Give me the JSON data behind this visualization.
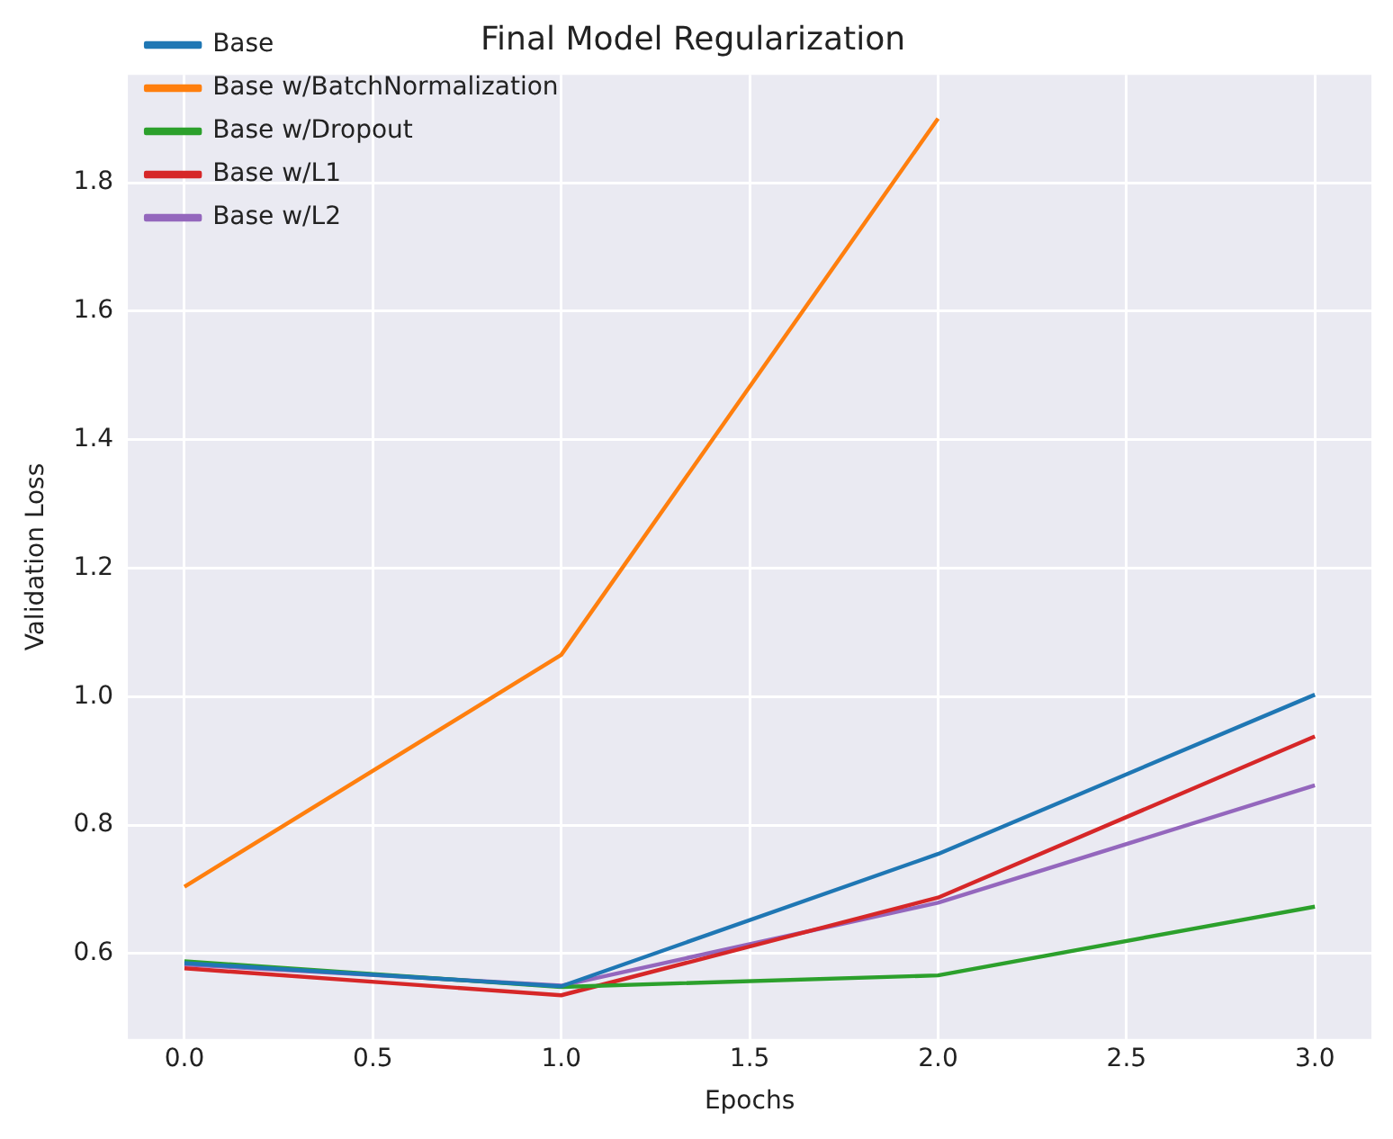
{
  "chart_data": {
    "type": "line",
    "title": "Final Model Regularization",
    "xlabel": "Epochs",
    "ylabel": "Validation Loss",
    "x": [
      0,
      1,
      2,
      3
    ],
    "series": [
      {
        "name": "Base",
        "color": "#1f77b4",
        "values": [
          0.585,
          0.549,
          0.755,
          1.003
        ]
      },
      {
        "name": "Base w/BatchNormalization",
        "color": "#ff7f0e",
        "values": [
          0.704,
          1.065,
          1.9,
          null
        ]
      },
      {
        "name": "Base w/Dropout",
        "color": "#2ca02c",
        "values": [
          0.588,
          0.548,
          0.566,
          0.673
        ]
      },
      {
        "name": "Base w/L1",
        "color": "#d62728",
        "values": [
          0.577,
          0.535,
          0.687,
          0.938
        ]
      },
      {
        "name": "Base w/L2",
        "color": "#9467bd",
        "values": [
          0.583,
          0.55,
          0.679,
          0.862
        ]
      }
    ],
    "xlim": [
      -0.15,
      3.15
    ],
    "xticks": [
      {
        "value": 0,
        "label": "0.0"
      },
      {
        "value": 0.5,
        "label": "0.5"
      },
      {
        "value": 1,
        "label": "1.0"
      },
      {
        "value": 1.5,
        "label": "1.5"
      },
      {
        "value": 2,
        "label": "2.0"
      },
      {
        "value": 2.5,
        "label": "2.5"
      },
      {
        "value": 3,
        "label": "3.0"
      }
    ],
    "ylim": [
      0.467,
      1.968
    ],
    "yticks": [
      {
        "value": 0.6,
        "label": "0.6"
      },
      {
        "value": 0.8,
        "label": "0.8"
      },
      {
        "value": 1,
        "label": "1.0"
      },
      {
        "value": 1.2,
        "label": "1.2"
      },
      {
        "value": 1.4,
        "label": "1.4"
      },
      {
        "value": 1.6,
        "label": "1.6"
      },
      {
        "value": 1.8,
        "label": "1.8"
      }
    ],
    "grid": true,
    "legend": "top left",
    "marker": "none",
    "line_style": "solid"
  }
}
